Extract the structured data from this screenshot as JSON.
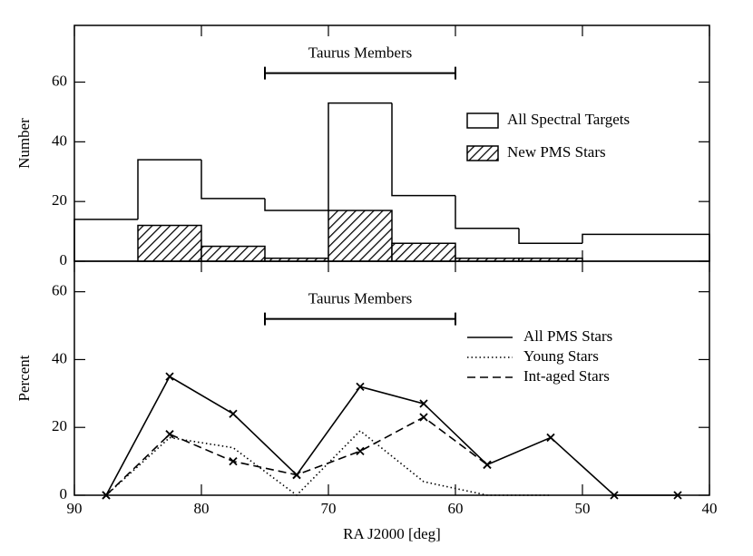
{
  "chart_data": [
    {
      "type": "histogram",
      "ylabel": "Number",
      "bins": [
        90,
        85,
        80,
        75,
        70,
        65,
        60,
        55,
        50,
        45,
        40
      ],
      "series": [
        {
          "name": "All Spectral Targets",
          "color": "#000000",
          "hatch": false,
          "values": [
            14,
            34,
            21,
            17,
            53,
            22,
            11,
            6,
            9,
            9
          ]
        },
        {
          "name": "New PMS Stars",
          "color": "#000000",
          "hatch": true,
          "values": [
            0,
            12,
            5,
            1,
            17,
            6,
            1,
            1,
            0,
            0
          ]
        }
      ],
      "xlim": [
        90,
        40
      ],
      "xticks": [
        90,
        80,
        70,
        60,
        50,
        40
      ],
      "ylim": [
        0,
        79
      ],
      "yticks": [
        0,
        20,
        40,
        60
      ],
      "annotation": {
        "text": "Taurus Members",
        "span": [
          75,
          60
        ],
        "y": 63
      },
      "legend": "right"
    },
    {
      "type": "line",
      "ylabel": "Percent",
      "xlabel": "RA J2000 [deg]",
      "x": [
        87.5,
        82.5,
        77.5,
        72.5,
        67.5,
        62.5,
        57.5,
        52.5,
        47.5,
        42.5
      ],
      "series": [
        {
          "name": "All PMS Stars",
          "color": "#000000",
          "linestyle": "solid",
          "marker": true,
          "values": [
            0,
            35,
            24,
            6,
            32,
            27,
            9,
            17,
            0,
            0
          ]
        },
        {
          "name": "Young Stars",
          "color": "#000000",
          "linestyle": "dotted",
          "marker": false,
          "values": [
            0,
            17,
            14,
            0,
            19,
            4,
            0,
            0,
            null,
            null
          ]
        },
        {
          "name": "Int-aged Stars",
          "color": "#000000",
          "linestyle": "dashed",
          "marker": true,
          "values": [
            0,
            18,
            10,
            6,
            13,
            23,
            9,
            null,
            null,
            null
          ]
        }
      ],
      "xlim": [
        90,
        40
      ],
      "xticks": [
        90,
        80,
        70,
        60,
        50,
        40
      ],
      "ylim": [
        0,
        69
      ],
      "yticks": [
        0,
        20,
        40,
        60
      ],
      "annotation": {
        "text": "Taurus Members",
        "span": [
          75,
          60
        ],
        "y": 52
      },
      "legend": "right"
    }
  ]
}
